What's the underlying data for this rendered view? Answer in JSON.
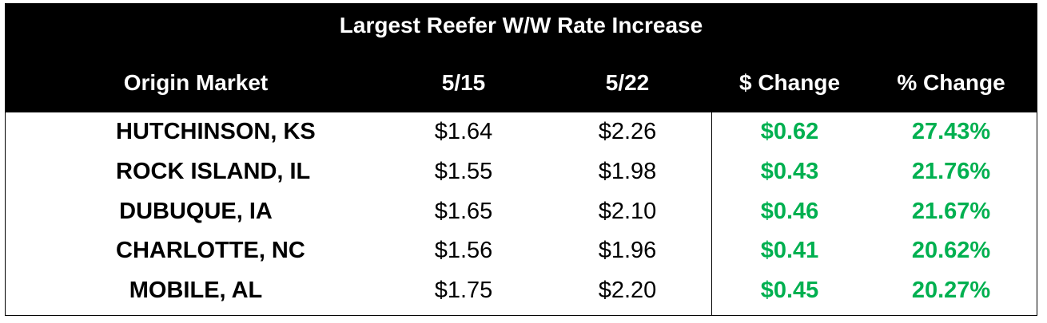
{
  "header": {
    "title": "Largest Reefer W/W Rate Increase"
  },
  "table": {
    "columns": [
      "Origin Market",
      "5/15",
      "5/22",
      "$ Change",
      "% Change"
    ],
    "rows": [
      [
        "HUTCHINSON, KS",
        "$1.64",
        "$2.26",
        "$0.62",
        "27.43%"
      ],
      [
        "ROCK ISLAND, IL",
        "$1.55",
        "$1.98",
        "$0.43",
        "21.76%"
      ],
      [
        "DUBUQUE, IA",
        "$1.65",
        "$2.10",
        "$0.46",
        "21.67%"
      ],
      [
        "CHARLOTTE, NC",
        "$1.56",
        "$1.96",
        "$0.41",
        "20.62%"
      ],
      [
        "MOBILE, AL",
        "$1.75",
        "$2.20",
        "$0.45",
        "20.27%"
      ]
    ]
  }
}
